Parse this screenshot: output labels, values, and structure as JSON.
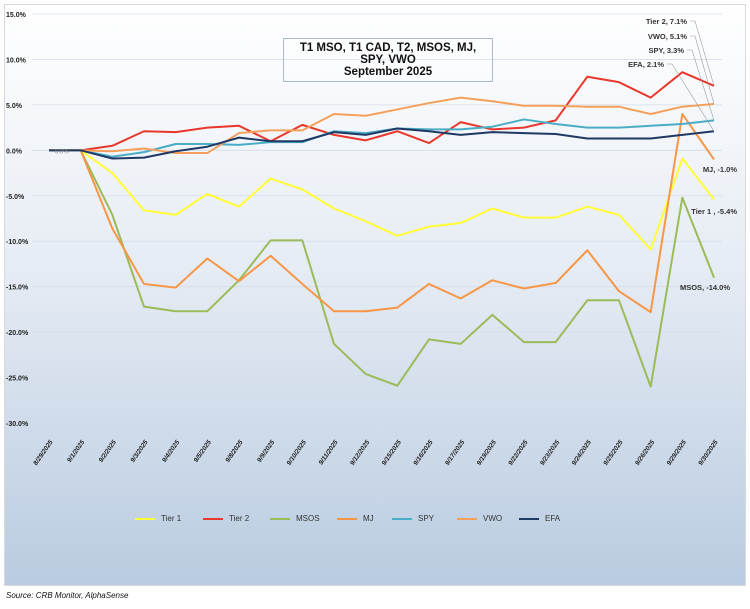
{
  "chart_data": {
    "type": "line",
    "title": "T1 MSO, T1 CAD, T2, MSOS, MJ, SPY, VWO",
    "subtitle": "September 2025",
    "xlabel": "",
    "ylabel": "",
    "ylim": [
      -30,
      15
    ],
    "yticks": [
      "15.0%",
      "10.0%",
      "5.0%",
      "0.0%",
      "-5.0%",
      "-10.0%",
      "-15.0%",
      "-20.0%",
      "-25.0%",
      "-30.0%"
    ],
    "ytick_values": [
      15,
      10,
      5,
      0,
      -5,
      -10,
      -15,
      -20,
      -25,
      -30
    ],
    "grid": true,
    "legend_position": "bottom",
    "x": [
      "8/29/2025",
      "9/1/2025",
      "9/2/2025",
      "9/3/2025",
      "9/4/2025",
      "9/5/2025",
      "9/8/2025",
      "9/9/2025",
      "9/10/2025",
      "9/11/2025",
      "9/12/2025",
      "9/15/2025",
      "9/16/2025",
      "9/17/2025",
      "9/19/2025",
      "9/22/2025",
      "9/23/2025",
      "9/24/2025",
      "9/25/2025",
      "9/26/2025",
      "9/29/2025",
      "9/30/2025"
    ],
    "series": [
      {
        "name": "Tier 1",
        "color": "#ffff33",
        "end_label": "Tier 1 , -5.4%",
        "values": [
          0,
          0,
          -2.5,
          -6.6,
          -7.1,
          -4.8,
          -6.2,
          -3.1,
          -4.3,
          -6.4,
          -7.8,
          -9.4,
          -8.4,
          -8.0,
          -6.4,
          -7.4,
          -7.4,
          -6.2,
          -7.1,
          -10.9,
          -0.9,
          -5.4
        ]
      },
      {
        "name": "Tier 2",
        "color": "#e8372b",
        "end_label": "Tier 2, 7.1%",
        "values": [
          0,
          0,
          0.5,
          2.1,
          2.0,
          2.5,
          2.7,
          1.0,
          2.8,
          1.7,
          1.1,
          2.1,
          0.8,
          3.1,
          2.3,
          2.5,
          3.3,
          8.1,
          7.5,
          5.8,
          8.6,
          7.1
        ]
      },
      {
        "name": "MSOS",
        "color": "#9bbb59",
        "end_label": "MSOS, -14.0%",
        "values": [
          0,
          0,
          -7.1,
          -17.2,
          -17.7,
          -17.7,
          -14.3,
          -9.9,
          -9.9,
          -21.3,
          -24.6,
          -25.9,
          -20.8,
          -21.3,
          -18.1,
          -21.1,
          -21.1,
          -16.5,
          -16.5,
          -26.0,
          -5.2,
          -14.0
        ]
      },
      {
        "name": "MJ",
        "color": "#f79646",
        "end_label": "MJ, -1.0%",
        "values": [
          0,
          0,
          -8.6,
          -14.7,
          -15.1,
          -11.9,
          -14.4,
          -11.6,
          -14.7,
          -17.7,
          -17.7,
          -17.3,
          -14.7,
          -16.3,
          -14.3,
          -15.2,
          -14.6,
          -11.0,
          -15.5,
          -17.8,
          4.0,
          -1.0
        ]
      },
      {
        "name": "SPY",
        "color": "#4bacc6",
        "end_label": "SPY, 3.3%",
        "values": [
          0,
          0,
          -0.7,
          -0.2,
          0.7,
          0.7,
          0.6,
          0.9,
          0.9,
          2.1,
          1.9,
          2.4,
          2.3,
          2.3,
          2.6,
          3.4,
          2.9,
          2.5,
          2.5,
          2.7,
          2.9,
          3.3
        ]
      },
      {
        "name": "VWO",
        "color": "#f5a05a",
        "end_label": "VWO, 5.1%",
        "values": [
          0,
          0,
          -0.1,
          0.2,
          -0.3,
          -0.3,
          1.9,
          2.2,
          2.2,
          4.0,
          3.8,
          4.5,
          5.2,
          5.8,
          5.4,
          4.9,
          4.9,
          4.8,
          4.8,
          4.0,
          4.8,
          5.1
        ]
      },
      {
        "name": "EFA",
        "color": "#1f3864",
        "end_label": "EFA, 2.1%",
        "values": [
          0,
          0,
          -0.9,
          -0.8,
          -0.1,
          0.4,
          1.4,
          1.0,
          1.0,
          2.0,
          1.7,
          2.4,
          2.1,
          1.7,
          2.0,
          1.9,
          1.8,
          1.3,
          1.3,
          1.3,
          1.7,
          2.1
        ]
      }
    ],
    "annotations": [
      "0.0%"
    ]
  },
  "source": "Source: CRB Monitor, AlphaSense"
}
